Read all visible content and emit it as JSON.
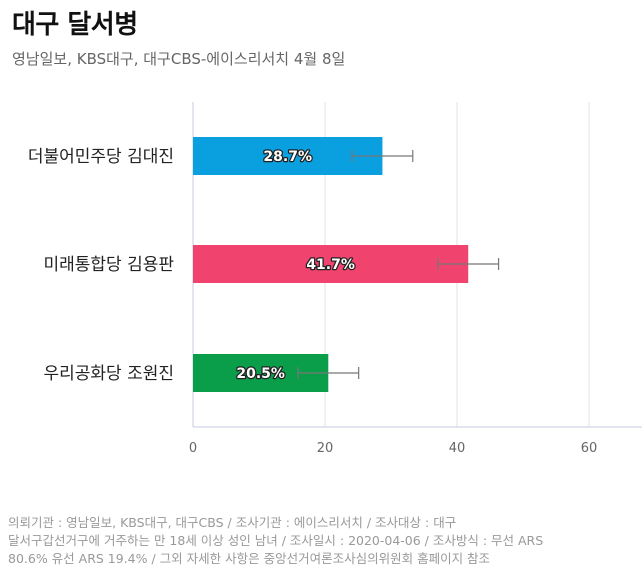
{
  "title": "대구 달서병",
  "subtitle": "영남일보, KBS대구, 대구CBS-에이스리서치 4월 8일",
  "footnote": [
    "의뢰기관 : 영남일보, KBS대구, 대구CBS / 조사기관 : 에이스리서치 / 조사대상 : 대구",
    "달서구갑선거구에 거주하는 만 18세 이상 성인 남녀 / 조사일시 : 2020-04-06 / 조사방식 : 무선 ARS",
    "80.6% 유선 ARS 19.4% / 그외 자세한 사항은 중앙선거여론조사심의위원회 홈페이지 참조"
  ],
  "chart_data": {
    "type": "bar",
    "orientation": "horizontal",
    "categories": [
      "더불어민주당 김대진",
      "미래통합당 김용판",
      "우리공화당 조원진"
    ],
    "values": [
      28.7,
      41.7,
      20.5
    ],
    "value_labels": [
      "28.7%",
      "41.7%",
      "20.5%"
    ],
    "error_bars": [
      [
        24.1,
        33.3
      ],
      [
        37.1,
        46.3
      ],
      [
        15.9,
        25.1
      ]
    ],
    "colors": [
      "#0aa0e0",
      "#f0436e",
      "#0a9e4a"
    ],
    "xlim": [
      0,
      68
    ],
    "x_ticks": [
      0,
      20,
      40,
      60
    ],
    "x_tick_labels": [
      "0",
      "20",
      "40",
      "60"
    ],
    "grid": true
  }
}
